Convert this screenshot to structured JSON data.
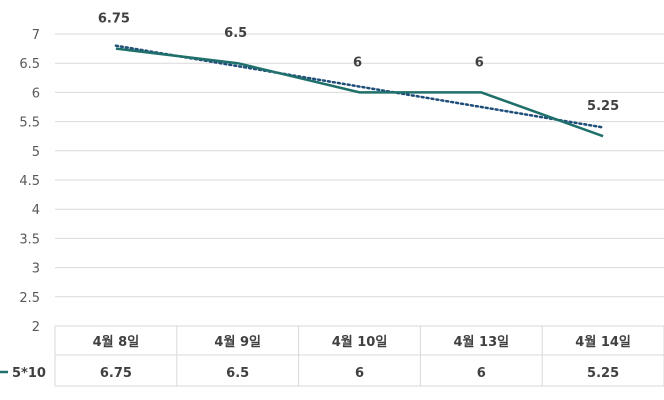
{
  "chart_data": {
    "type": "line",
    "categories": [
      "4월 8일",
      "4월 9일",
      "4월 10일",
      "4월 13일",
      "4월 14일"
    ],
    "series": [
      {
        "name": "5*10",
        "values": [
          6.75,
          6.5,
          6,
          6,
          5.25
        ],
        "color": "#1f6f6b",
        "data_labels": [
          "6.75",
          "6.5",
          "6",
          "6",
          "5.25"
        ]
      }
    ],
    "trendline": {
      "type": "linear",
      "style": "dotted",
      "color": "#1f4e79"
    },
    "y_ticks": [
      "2",
      "2.5",
      "3",
      "3.5",
      "4",
      "4.5",
      "5",
      "5.5",
      "6",
      "6.5",
      "7"
    ],
    "ylim": [
      2,
      7
    ],
    "grid": true,
    "data_table": {
      "row_label": "5*10",
      "values": [
        "6.75",
        "6.5",
        "6",
        "6",
        "5.25"
      ]
    },
    "title": "",
    "xlabel": "",
    "ylabel": ""
  }
}
